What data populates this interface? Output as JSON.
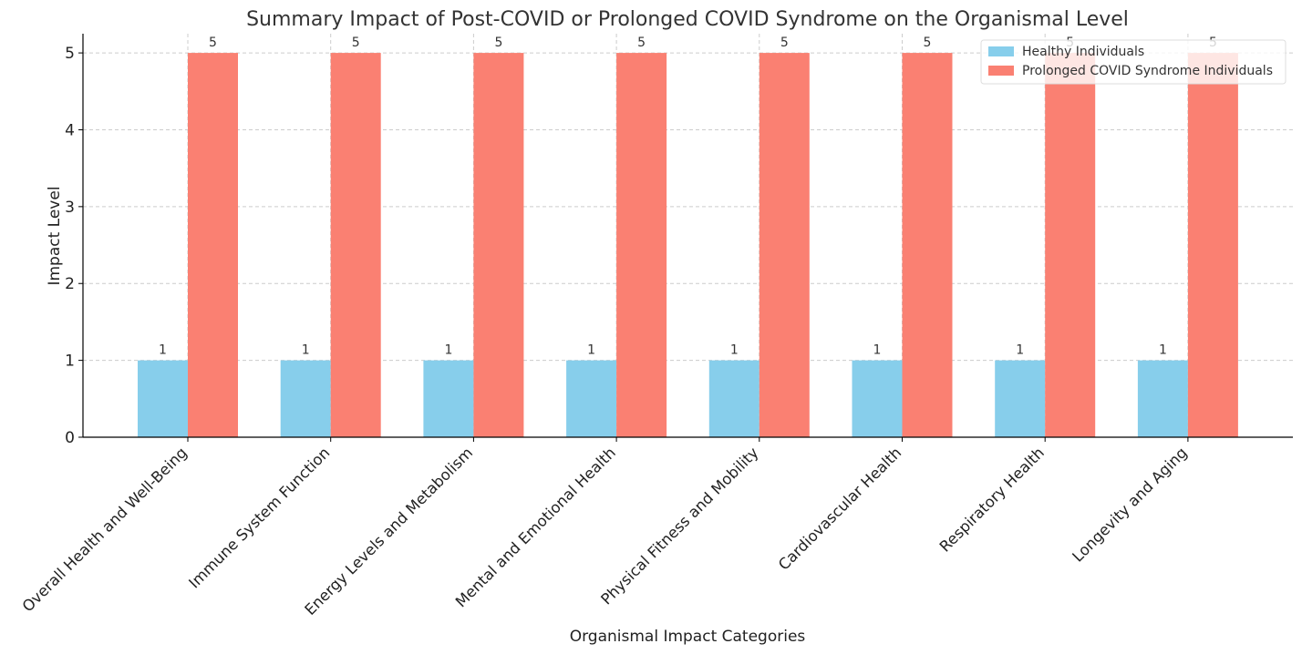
{
  "chart_data": {
    "type": "bar",
    "title": "Summary Impact of Post-COVID or Prolonged COVID Syndrome on the Organismal Level",
    "xlabel": "Organismal Impact Categories",
    "ylabel": "Impact Level",
    "ylim": [
      0,
      5.25
    ],
    "yticks": [
      0,
      1,
      2,
      3,
      4,
      5
    ],
    "grid": true,
    "legend_position": "top-right",
    "categories": [
      "Overall Health and Well-Being",
      "Immune System Function",
      "Energy Levels and Metabolism",
      "Mental and Emotional Health",
      "Physical Fitness and Mobility",
      "Cardiovascular Health",
      "Respiratory Health",
      "Longevity and Aging"
    ],
    "series": [
      {
        "name": "Healthy Individuals",
        "color": "#87ceeb",
        "values": [
          1,
          1,
          1,
          1,
          1,
          1,
          1,
          1
        ]
      },
      {
        "name": "Prolonged COVID Syndrome Individuals",
        "color": "#fa8072",
        "values": [
          5,
          5,
          5,
          5,
          5,
          5,
          5,
          5
        ]
      }
    ]
  }
}
